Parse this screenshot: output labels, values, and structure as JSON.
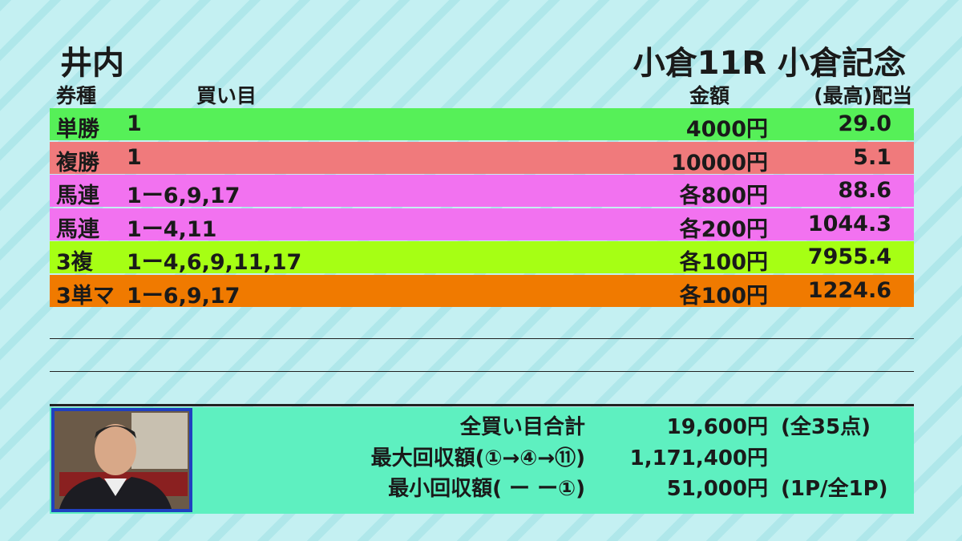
{
  "header": {
    "name": "井内",
    "race": "小倉11R 小倉記念"
  },
  "columns": [
    "券種",
    "買い目",
    "金額",
    "(最高)配当"
  ],
  "rows": [
    [
      "単勝",
      "1",
      "4000円",
      "29.0"
    ],
    [
      "複勝",
      "1",
      "10000円",
      "5.1"
    ],
    [
      "馬連",
      "1ー6,9,17",
      "各800円",
      "88.6"
    ],
    [
      "馬連",
      "1ー4,11",
      "各200円",
      "1044.3"
    ],
    [
      "3複",
      "1ー4,6,9,11,17",
      "各100円",
      "7955.4"
    ],
    [
      "3単マ",
      "1ー6,9,17",
      "各100円",
      "1224.6"
    ]
  ],
  "summary": [
    {
      "label": "全買い目合計",
      "value": "19,600円",
      "note": "(全35点)"
    },
    {
      "label": "最大回収額(①→④→⑪)",
      "value": "1,171,400円"
    },
    {
      "label": "最小回収額( ー ー①)",
      "value": "51,000円",
      "note": "(1P/全1P)"
    }
  ]
}
